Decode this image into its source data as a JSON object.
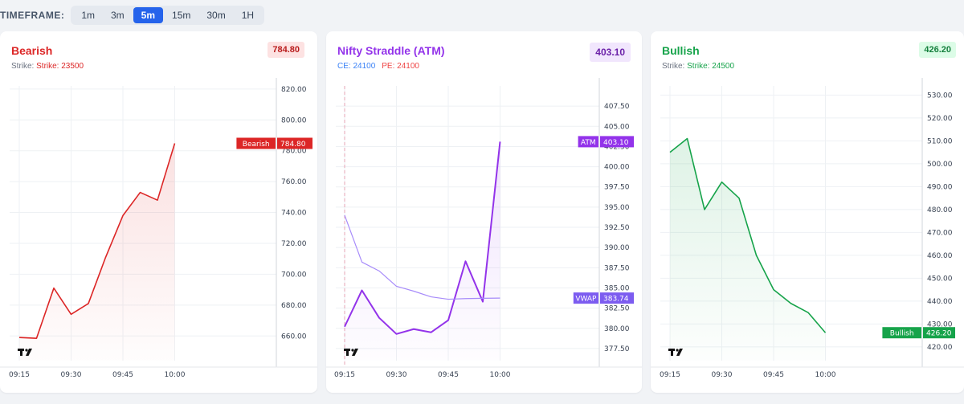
{
  "toolbar": {
    "label": "TIMEFRAME:",
    "options": [
      "1m",
      "3m",
      "5m",
      "15m",
      "30m",
      "1H"
    ],
    "selected": "5m"
  },
  "colors": {
    "bearish": "#dc2626",
    "straddle": "#9333ea",
    "vwap": "#a78bfa",
    "bullish": "#16a34a",
    "ce": "#3b82f6",
    "pe": "#ef4444"
  },
  "panels": [
    {
      "title": "Bearish",
      "badge": "784.80",
      "sub_prefix": "Strike: ",
      "sub_value": "Strike: 23500"
    },
    {
      "title": "Nifty Straddle (ATM)",
      "badge": "403.10",
      "ce_label": "CE: 24100",
      "pe_label": "PE: 24100"
    },
    {
      "title": "Bullish",
      "badge": "426.20",
      "sub_prefix": "Strike: ",
      "sub_value": "Strike: 24500"
    }
  ],
  "chart_data": [
    {
      "type": "area",
      "x_ticks": [
        "09:15",
        "09:30",
        "09:45",
        "10:00"
      ],
      "x": [
        "09:15",
        "09:20",
        "09:25",
        "09:30",
        "09:35",
        "09:40",
        "09:45",
        "09:50",
        "09:55",
        "10:00"
      ],
      "y_ticks": [
        "660.00",
        "680.00",
        "700.00",
        "720.00",
        "740.00",
        "760.00",
        "780.00",
        "800.00",
        "820.00"
      ],
      "ylim": [
        644,
        822
      ],
      "series": [
        {
          "name": "Bearish",
          "values": [
            659,
            658.5,
            691,
            674,
            681,
            711,
            738,
            753,
            748,
            784.8
          ]
        }
      ],
      "last_label": "Bearish",
      "last_value": "784.80",
      "grid": true
    },
    {
      "type": "line",
      "x_ticks": [
        "09:15",
        "09:30",
        "09:45",
        "10:00"
      ],
      "x": [
        "09:15",
        "09:20",
        "09:25",
        "09:30",
        "09:35",
        "09:40",
        "09:45",
        "09:50",
        "09:55",
        "10:00"
      ],
      "y_ticks": [
        "377.50",
        "380.00",
        "382.50",
        "385.00",
        "387.50",
        "390.00",
        "392.50",
        "395.00",
        "397.50",
        "400.00",
        "402.50",
        "405.00",
        "407.50"
      ],
      "ylim": [
        376,
        410
      ],
      "series": [
        {
          "name": "ATM",
          "values": [
            380.2,
            384.7,
            381.3,
            379.3,
            379.9,
            379.5,
            381.0,
            388.3,
            383.3,
            403.1
          ]
        },
        {
          "name": "VWAP",
          "values": [
            394.0,
            388.2,
            387.1,
            385.2,
            384.6,
            383.9,
            383.6,
            383.68,
            383.72,
            383.74
          ]
        }
      ],
      "last_labels": [
        "ATM",
        "VWAP"
      ],
      "last_values": [
        "403.10",
        "383.74"
      ],
      "grid": true
    },
    {
      "type": "area",
      "x_ticks": [
        "09:15",
        "09:30",
        "09:45",
        "10:00"
      ],
      "x": [
        "09:15",
        "09:20",
        "09:25",
        "09:30",
        "09:35",
        "09:40",
        "09:45",
        "09:50",
        "09:55",
        "10:00"
      ],
      "y_ticks": [
        "420.00",
        "430.00",
        "440.00",
        "450.00",
        "460.00",
        "470.00",
        "480.00",
        "490.00",
        "500.00",
        "510.00",
        "520.00",
        "530.00"
      ],
      "ylim": [
        414,
        534
      ],
      "series": [
        {
          "name": "Bullish",
          "values": [
            505,
            511,
            480,
            492,
            485,
            460,
            445,
            439,
            435,
            426.2
          ]
        }
      ],
      "last_label": "Bullish",
      "last_value": "426.20",
      "grid": true
    }
  ]
}
